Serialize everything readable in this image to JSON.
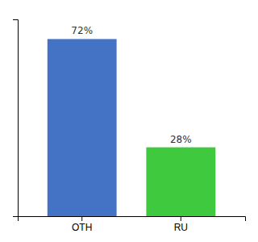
{
  "chart_data": {
    "type": "bar",
    "categories": [
      "OTH",
      "RU"
    ],
    "values": [
      72,
      28
    ],
    "value_labels": [
      "72%",
      "28%"
    ],
    "colors": [
      "#4472C4",
      "#3EC93E"
    ],
    "ylim": [
      0,
      80
    ],
    "data_labels": true,
    "tick_labels": "x"
  }
}
